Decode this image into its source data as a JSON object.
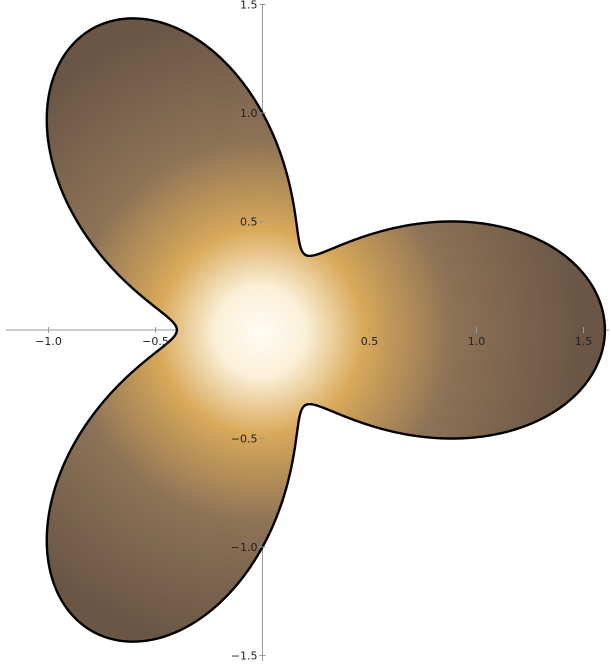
{
  "chart_data": {
    "type": "region-density",
    "title": "",
    "xlabel": "",
    "ylabel": "",
    "xlim": [
      -1.22,
      1.62
    ],
    "ylim": [
      -1.56,
      1.56
    ],
    "grid": false,
    "legend": "none",
    "x_ticks": [
      {
        "value": -1.0,
        "label": "−1.0"
      },
      {
        "value": -0.5,
        "label": "−0.5"
      },
      {
        "value": 0.5,
        "label": "0.5"
      },
      {
        "value": 1.0,
        "label": "1.0"
      },
      {
        "value": 1.5,
        "label": "1.5"
      }
    ],
    "y_ticks": [
      {
        "value": 1.5,
        "label": "1.5"
      },
      {
        "value": 1.0,
        "label": "1.0"
      },
      {
        "value": 0.5,
        "label": "0.5"
      },
      {
        "value": -0.5,
        "label": "−0.5"
      },
      {
        "value": -1.0,
        "label": "−1.0"
      },
      {
        "value": -1.5,
        "label": "−1.5"
      }
    ],
    "boundary": {
      "symmetry": "3-fold trefoil",
      "lobe_tips": [
        [
          1.6,
          0.0
        ],
        [
          -0.8,
          1.39
        ],
        [
          -0.8,
          -1.39
        ]
      ],
      "waists": [
        [
          0.29,
          0.51
        ],
        [
          -0.59,
          0.0
        ],
        [
          0.29,
          -0.51
        ]
      ],
      "outline_color": "#000000"
    },
    "colors": {
      "center": "#fffcf5",
      "mid": "#d9a95a",
      "outer": "#6b5646"
    }
  }
}
